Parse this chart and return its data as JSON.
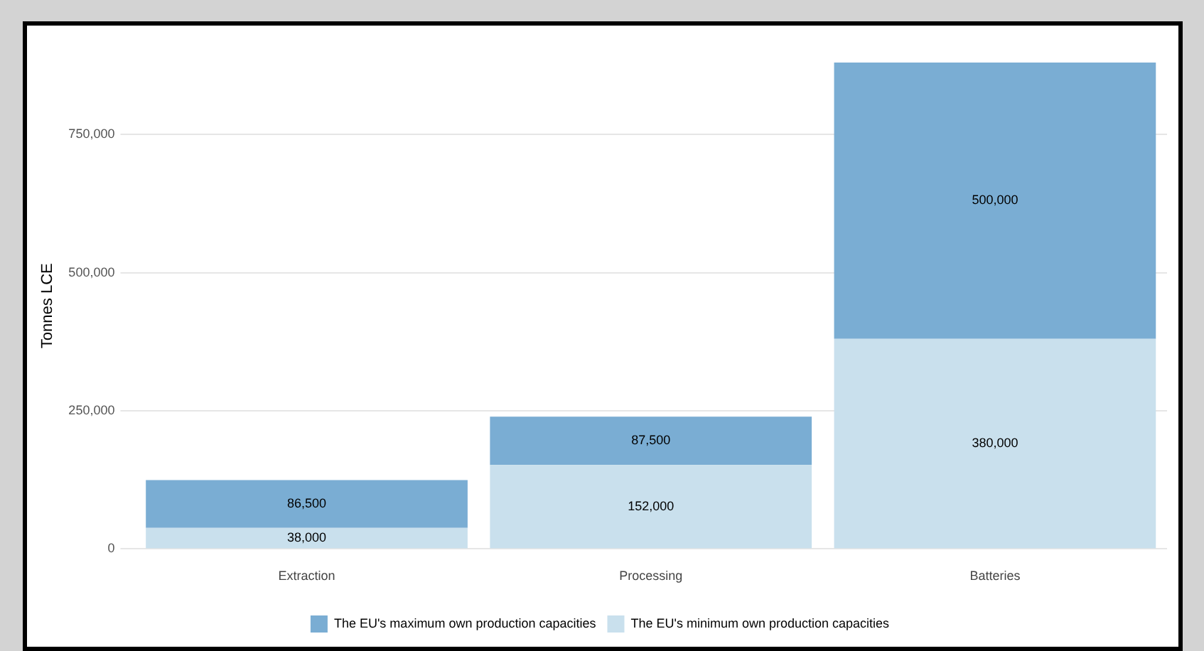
{
  "chart_data": {
    "type": "bar",
    "stacked": true,
    "ylabel": "Tonnes LCE",
    "categories": [
      "Extraction",
      "Processing",
      "Batteries"
    ],
    "series": [
      {
        "name": "The EU's minimum own production capacities",
        "color": "#c9e0ed",
        "values": [
          38000,
          152000,
          380000
        ],
        "value_labels": [
          "38,000",
          "152,000",
          "380,000"
        ]
      },
      {
        "name": "The EU's maximum own production capacities",
        "color": "#7aadd3",
        "values": [
          86500,
          87500,
          500000
        ],
        "value_labels": [
          "86,500",
          "87,500",
          "500,000"
        ]
      }
    ],
    "ylim": [
      0,
      880000
    ],
    "yticks": [
      {
        "value": 0,
        "label": "0"
      },
      {
        "value": 250000,
        "label": "250,000"
      },
      {
        "value": 500000,
        "label": "500,000"
      },
      {
        "value": 750000,
        "label": "750,000"
      }
    ],
    "grid": "y",
    "legend": "bottom"
  }
}
